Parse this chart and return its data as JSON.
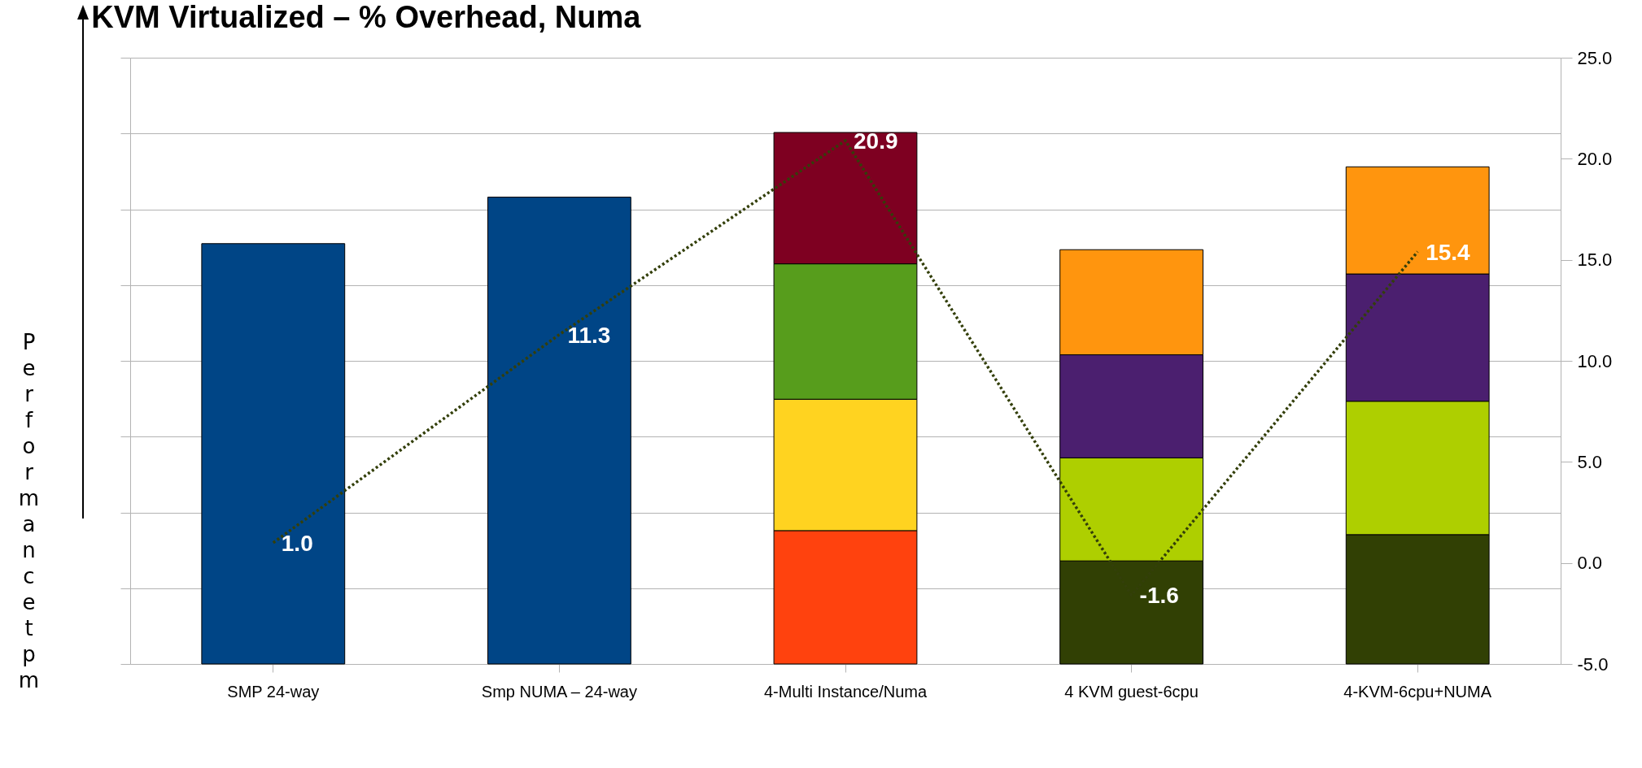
{
  "chart_data": {
    "type": "bar",
    "title": "KVM Virtualized – % Overhead, Numa",
    "ylabel": "Performance tpm",
    "categories": [
      "SMP 24-way",
      "Smp NUMA – 24-way",
      "4-Multi Instance/Numa",
      "4 KVM guest-6cpu",
      "4-KVM-6cpu+NUMA"
    ],
    "grid": "y",
    "series": [
      {
        "axis": "y2",
        "base": [
          -5,
          -5,
          -5,
          -5,
          -5
        ],
        "colors": [
          "#004586",
          "#004586",
          "#ff420e",
          "#314004",
          "#314004"
        ],
        "values": [
          20.8,
          23.1,
          6.6,
          5.1,
          6.4
        ]
      },
      {
        "axis": "y2",
        "base": [
          null,
          null,
          1.6,
          0.1,
          1.4
        ],
        "colors": [
          null,
          null,
          "#ffd320",
          "#aecf00",
          "#aecf00"
        ],
        "values": [
          null,
          null,
          6.5,
          5.1,
          6.6
        ]
      },
      {
        "axis": "y2",
        "base": [
          null,
          null,
          8.1,
          5.2,
          8.0
        ],
        "colors": [
          null,
          null,
          "#579d1c",
          "#4b1f6f",
          "#4b1f6f"
        ],
        "values": [
          null,
          null,
          6.7,
          5.1,
          6.3
        ]
      },
      {
        "axis": "y2",
        "base": [
          null,
          null,
          14.8,
          10.3,
          14.3
        ],
        "colors": [
          null,
          null,
          "#7e0021",
          "#ff950e",
          "#ff950e"
        ],
        "values": [
          null,
          null,
          6.5,
          5.2,
          5.3
        ]
      },
      {
        "type": "line",
        "axis": "y2",
        "color": "#333f0a",
        "line_style": "dotted",
        "values": [
          1.0,
          11.3,
          20.9,
          -1.6,
          15.4
        ],
        "value_labels": [
          "1.0",
          "11.3",
          "20.9",
          "-1.6",
          "15.4"
        ]
      }
    ],
    "y2lim": [
      -5,
      25
    ],
    "y2ticks": [
      {
        "value": -5,
        "label": "-5.0"
      },
      {
        "value": 0,
        "label": "0.0"
      },
      {
        "value": 5,
        "label": "5.0"
      },
      {
        "value": 10,
        "label": "10.0"
      },
      {
        "value": 15,
        "label": "15.0"
      },
      {
        "value": 20,
        "label": "20.0"
      },
      {
        "value": 25,
        "label": "25.0"
      }
    ]
  }
}
